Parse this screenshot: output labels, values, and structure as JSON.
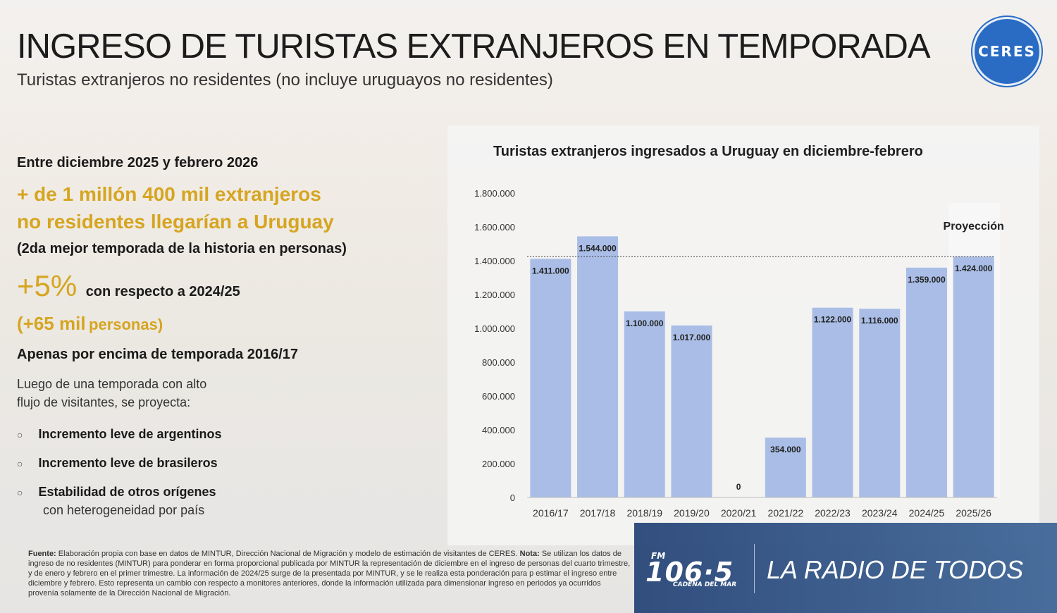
{
  "header": {
    "title": "INGRESO DE TURISTAS EXTRANJEROS EN TEMPORADA",
    "subtitle": "Turistas extranjeros no residentes (no incluye uruguayos no residentes)",
    "logo_text": "CERES"
  },
  "left": {
    "period": "Entre diciembre 2025 y febrero 2026",
    "headline1": "+ de 1 millón 400 mil extranjeros",
    "headline2": "no residentes llegarían a Uruguay",
    "note": "(2da mejor temporada de la historia en personas)",
    "pct": "+5%",
    "pct_text": "con respecto a 2024/25",
    "abs_num": "(+65 mil",
    "abs_text": "personas)",
    "compare": "Apenas por encima de temporada 2016/17",
    "intro1": "Luego de una temporada con alto",
    "intro2": "flujo de visitantes, se proyecta:",
    "bullets": [
      "Incremento leve de argentinos",
      "Incremento leve de brasileros",
      "Estabilidad de otros orígenes"
    ],
    "bullet3_sub": "con heterogeneidad por país"
  },
  "chart_data": {
    "type": "bar",
    "title": "Turistas extranjeros ingresados a Uruguay en diciembre-febrero",
    "categories": [
      "2016/17",
      "2017/18",
      "2018/19",
      "2019/20",
      "2020/21",
      "2021/22",
      "2022/23",
      "2023/24",
      "2024/25",
      "2025/26"
    ],
    "values": [
      1411000,
      1544000,
      1100000,
      1017000,
      0,
      354000,
      1122000,
      1116000,
      1359000,
      1424000
    ],
    "labels": [
      "1.411.000",
      "1.544.000",
      "1.100.000",
      "1.017.000",
      "0",
      "354.000",
      "1.122.000",
      "1.116.000",
      "1.359.000",
      "1.424.000"
    ],
    "yticks": [
      0,
      200000,
      400000,
      600000,
      800000,
      1000000,
      1200000,
      1400000,
      1600000,
      1800000
    ],
    "ytick_labels": [
      "0",
      "200.000",
      "400.000",
      "600.000",
      "800.000",
      "1.000.000",
      "1.200.000",
      "1.400.000",
      "1.600.000",
      "1.800.000"
    ],
    "ylim": [
      0,
      1800000
    ],
    "projection_label": "Proyección",
    "bar_color": "#a9bde6",
    "reference_line": 1424000
  },
  "footer": {
    "line1_bold": "Fuente:",
    "line1": "Elaboración propia con base en datos de MINTUR, Dirección Nacional de Migración y modelo de estimación de visitantes de CERES.",
    "line1_nota": "Nota:",
    "line1_end": "Se utilizan los datos de ingreso de no residentes (MINTUR) para ponderar en forma proporcional",
    "line2": "publicada por MINTUR la representación de diciembre en el ingreso de personas del cuarto trimestre, y de enero y febrero en el primer trimestre. La información de 2024/25 surge de la presentada por MINTUR, y se le realiza esta ponderación para p",
    "line3": "estimar el ingreso entre diciembre y febrero. Esto representa un cambio con respecto a monitores anteriores, donde la información utilizada para dimensionar ingreso en periodos ya ocurridos provenía solamente de la Dirección Nacional de Migración."
  },
  "banner": {
    "fm": "FM",
    "frequency": "106·5",
    "station": "CADENA DEL MAR",
    "slogan": "LA RADIO DE TODOS"
  }
}
